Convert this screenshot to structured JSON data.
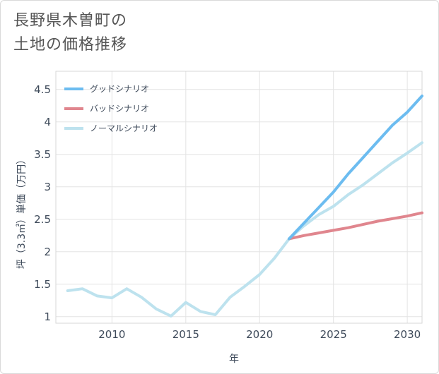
{
  "title_lines": [
    "長野県木曽町の",
    "土地の価格推移"
  ],
  "chart_data": {
    "type": "line",
    "xlabel": "年",
    "ylabel": "坪（3.3㎡）単価（万円）",
    "xlim": [
      2006.2,
      2031
    ],
    "ylim": [
      0.9,
      4.78
    ],
    "xticks": [
      2010,
      2015,
      2020,
      2025,
      2030
    ],
    "yticks": [
      1,
      1.5,
      2,
      2.5,
      3,
      3.5,
      4,
      4.5
    ],
    "ytick_labels": [
      "1",
      "1.5",
      "2",
      "2.5",
      "3",
      "3.5",
      "4",
      "4.5"
    ],
    "grid": true,
    "legend_position": "top-left",
    "series": [
      {
        "name": "グッドシナリオ",
        "color": "#6cbcf0",
        "x": [
          2022,
          2023,
          2024,
          2025,
          2026,
          2027,
          2028,
          2029,
          2030,
          2031
        ],
        "values": [
          2.2,
          2.44,
          2.68,
          2.92,
          3.2,
          3.45,
          3.7,
          3.95,
          4.15,
          4.4
        ]
      },
      {
        "name": "バッドシナリオ",
        "color": "#e0868e",
        "x": [
          2022,
          2023,
          2024,
          2025,
          2026,
          2027,
          2028,
          2029,
          2030,
          2031
        ],
        "values": [
          2.2,
          2.25,
          2.29,
          2.33,
          2.37,
          2.42,
          2.47,
          2.51,
          2.55,
          2.6
        ]
      },
      {
        "name": "ノーマルシナリオ",
        "color": "#bde2ee",
        "x": [
          2007,
          2008,
          2009,
          2010,
          2011,
          2012,
          2013,
          2014,
          2015,
          2016,
          2017,
          2018,
          2019,
          2020,
          2021,
          2022,
          2023,
          2024,
          2025,
          2026,
          2027,
          2028,
          2029,
          2030,
          2031
        ],
        "values": [
          1.4,
          1.43,
          1.32,
          1.29,
          1.43,
          1.3,
          1.12,
          1.01,
          1.22,
          1.08,
          1.03,
          1.3,
          1.47,
          1.65,
          1.9,
          2.2,
          2.4,
          2.57,
          2.7,
          2.88,
          3.03,
          3.2,
          3.37,
          3.52,
          3.68
        ]
      }
    ]
  }
}
